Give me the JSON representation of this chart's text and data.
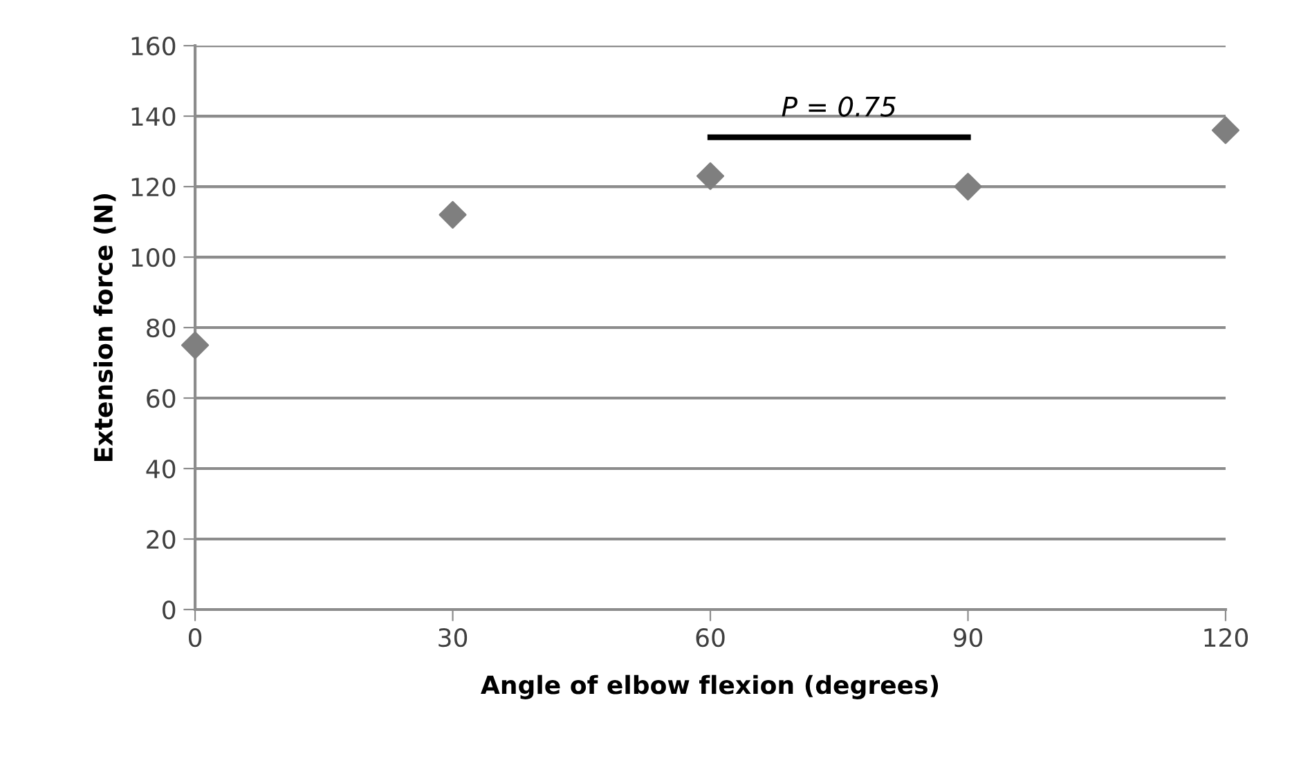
{
  "chart_data": {
    "type": "scatter",
    "xlabel": "Angle of elbow flexion (degrees)",
    "ylabel": "Extension force (N)",
    "x": [
      0,
      30,
      60,
      90,
      120
    ],
    "series": [
      {
        "color": "#7f7f7f",
        "values": [
          75,
          112,
          123,
          120,
          136
        ],
        "marker": "diamond"
      },
      {
        "type": "line",
        "color": "#000000",
        "x": [
          60,
          90
        ],
        "values": [
          134,
          134
        ],
        "marker": "none",
        "line_style": "solid"
      }
    ],
    "annotations": [
      {
        "text": "P = 0.75",
        "x": 75,
        "y": 134
      }
    ],
    "xlim": [
      0,
      120
    ],
    "xticks": [
      0,
      30,
      60,
      90,
      120
    ],
    "ylim": [
      0,
      160
    ],
    "yticks": [
      0,
      20,
      40,
      60,
      80,
      100,
      120,
      140,
      160
    ],
    "grid": "y",
    "legend": false
  }
}
